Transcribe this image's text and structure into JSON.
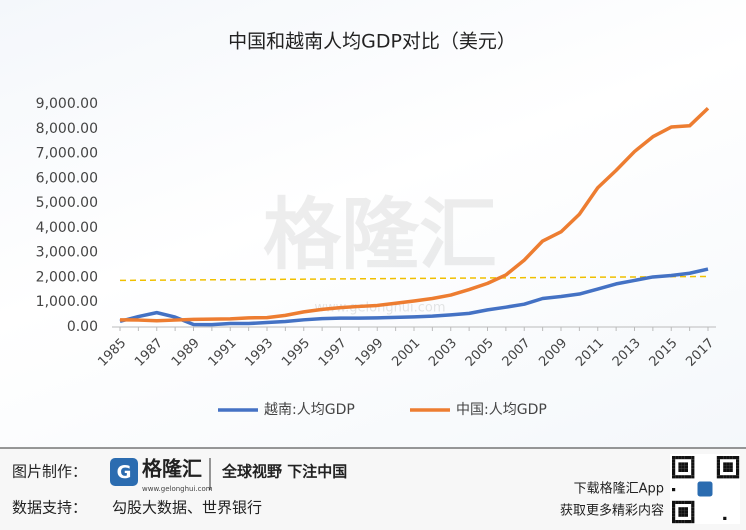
{
  "chart_data": {
    "type": "line",
    "title": "中国和越南人均GDP对比（美元）",
    "watermark": "格隆汇",
    "watermark_url": "www.gelonghui.com",
    "categories": [
      "1985",
      null,
      "1987",
      null,
      "1989",
      null,
      "1991",
      null,
      "1993",
      null,
      "1995",
      null,
      "1997",
      null,
      "1999",
      null,
      "2001",
      null,
      "2003",
      null,
      "2005",
      null,
      "2007",
      null,
      "2009",
      null,
      "2011",
      null,
      "2013",
      null,
      "2015",
      null,
      "2017"
    ],
    "series": [
      {
        "name": "越南:人均GDP",
        "color": "#4472c4",
        "values": [
          230,
          420,
          580,
          400,
          100,
          95,
          140,
          140,
          180,
          220,
          290,
          340,
          360,
          360,
          370,
          390,
          410,
          440,
          490,
          550,
          690,
          800,
          920,
          1150,
          1230,
          1330,
          1530,
          1740,
          1880,
          2020,
          2080,
          2170,
          2340
        ]
      },
      {
        "name": "中国:人均GDP",
        "color": "#ed7d31",
        "values": [
          290,
          280,
          250,
          280,
          310,
          320,
          330,
          370,
          380,
          470,
          610,
          710,
          780,
          830,
          870,
          960,
          1050,
          1150,
          1290,
          1510,
          1760,
          2100,
          2700,
          3470,
          3840,
          4550,
          5620,
          6320,
          7080,
          7680,
          8070,
          8120,
          8830
        ]
      }
    ],
    "trendline": {
      "color": "#f0c000",
      "values": [
        1880,
        2040
      ]
    },
    "ylim": [
      0,
      9000
    ],
    "yticks": [
      {
        "value": 0,
        "label": "0.00"
      },
      {
        "value": 1000,
        "label": "1,000.00"
      },
      {
        "value": 2000,
        "label": "2,000.00"
      },
      {
        "value": 3000,
        "label": "3,000.00"
      },
      {
        "value": 4000,
        "label": "4,000.00"
      },
      {
        "value": 5000,
        "label": "5,000.00"
      },
      {
        "value": 6000,
        "label": "6,000.00"
      },
      {
        "value": 7000,
        "label": "7,000.00"
      },
      {
        "value": 8000,
        "label": "8,000.00"
      },
      {
        "value": 9000,
        "label": "9,000.00"
      }
    ],
    "grid": false,
    "legend": "bottom"
  },
  "footer": {
    "made_by_label": "图片制作：",
    "logo_text": "格隆汇",
    "logo_url": "www.gelonghui.com",
    "slogan": "全球视野 下注中国",
    "source_label": "数据支持：",
    "source": "勾股大数据、世界银行",
    "app_line1": "下载格隆汇App",
    "app_line2": "获取更多精彩内容"
  }
}
